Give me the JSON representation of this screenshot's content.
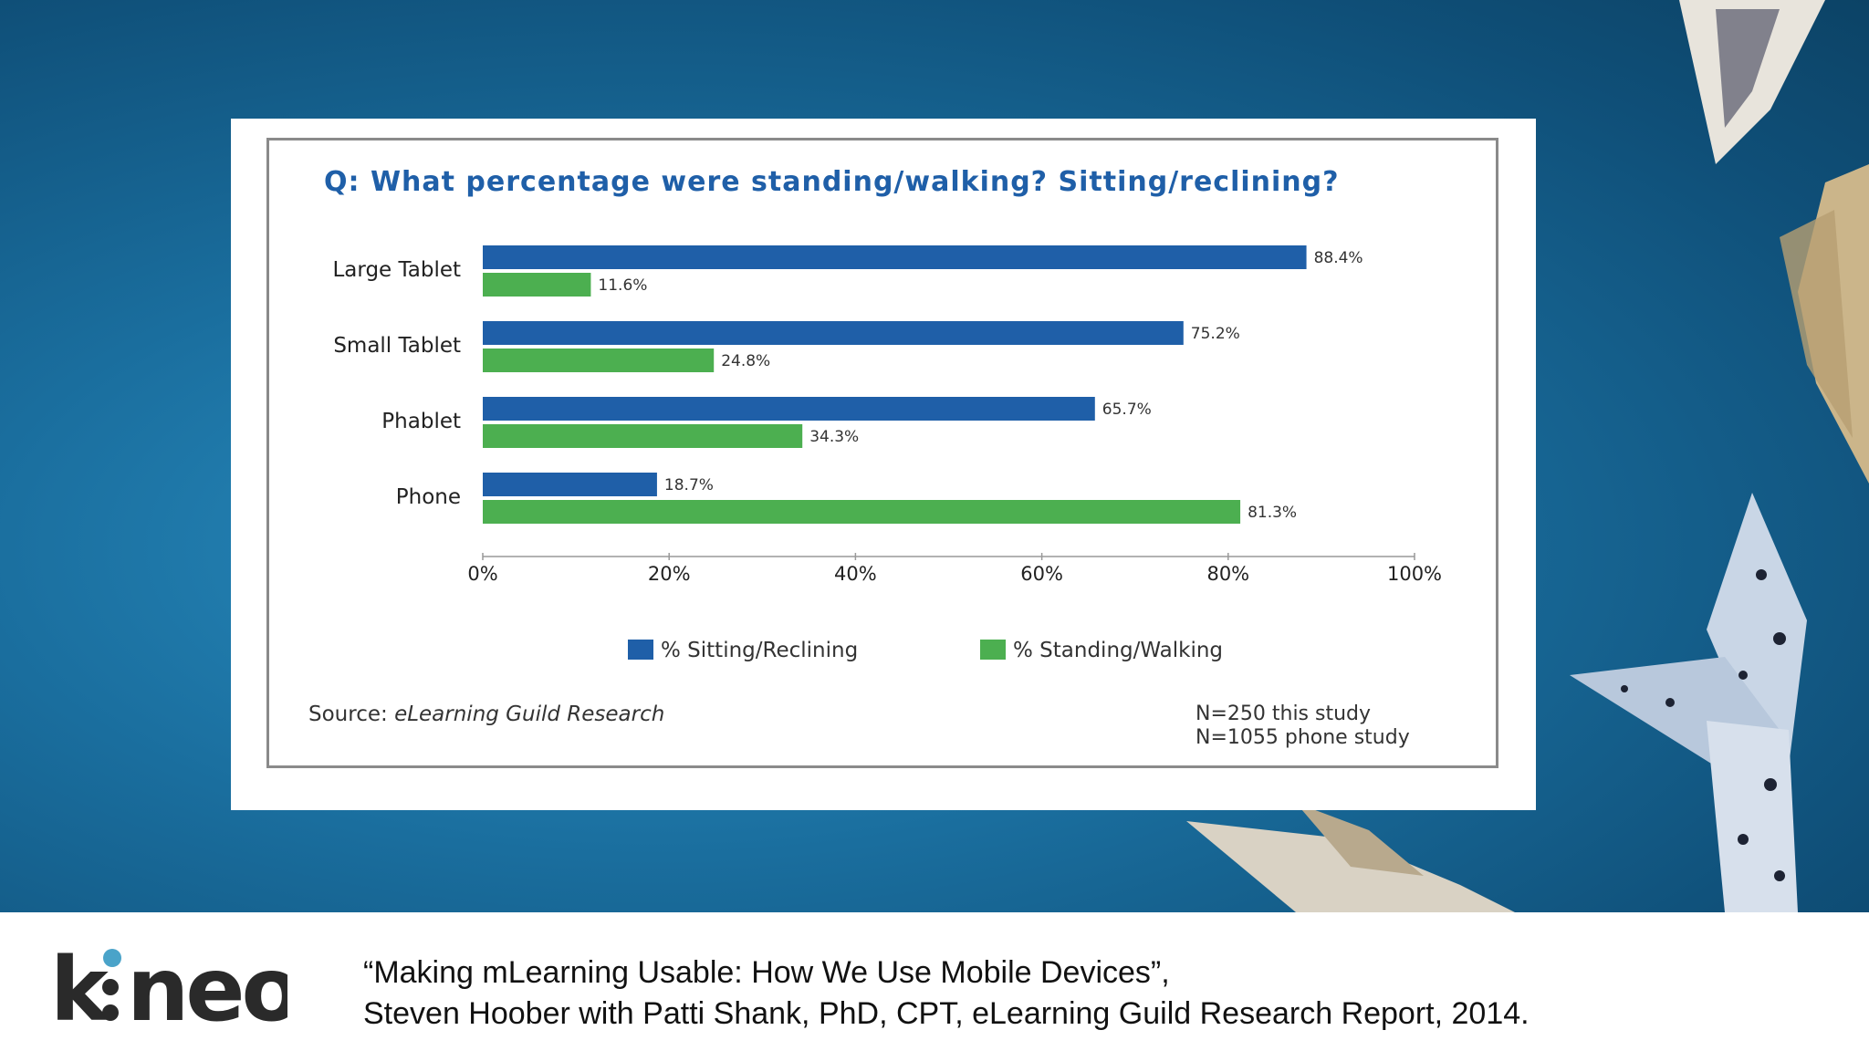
{
  "brand": {
    "logo_text": "kineo",
    "accent": "#4aa3c9"
  },
  "chart_data": {
    "type": "bar",
    "orientation": "horizontal",
    "title": "Q: What percentage were standing/walking? Sitting/reclining?",
    "categories": [
      "Large Tablet",
      "Small Tablet",
      "Phablet",
      "Phone"
    ],
    "series": [
      {
        "name": "% Sitting/Reclining",
        "color": "#1f5fa8",
        "values": [
          88.4,
          75.2,
          65.7,
          18.7
        ],
        "labels": [
          "88.4%",
          "75.2%",
          "65.7%",
          "18.7%"
        ]
      },
      {
        "name": "% Standing/Walking",
        "color": "#4caf50",
        "values": [
          11.6,
          24.8,
          34.3,
          81.3
        ],
        "labels": [
          "11.6%",
          "24.8%",
          "34.3%",
          "81.3%"
        ]
      }
    ],
    "xlim": [
      0,
      100
    ],
    "xticks": [
      "0%",
      "20%",
      "40%",
      "60%",
      "80%",
      "100%"
    ],
    "legend_position": "bottom",
    "grid": false
  },
  "source": {
    "prefix": "Source: ",
    "name": "eLearning Guild Research"
  },
  "notes": {
    "line1": "N=250 this study",
    "line2": "N=1055 phone study"
  },
  "citation": {
    "line1": "“Making mLearning Usable: How We Use Mobile Devices”,",
    "line2": "Steven Hoober with Patti Shank, PhD, CPT, eLearning Guild Research Report, 2014."
  }
}
